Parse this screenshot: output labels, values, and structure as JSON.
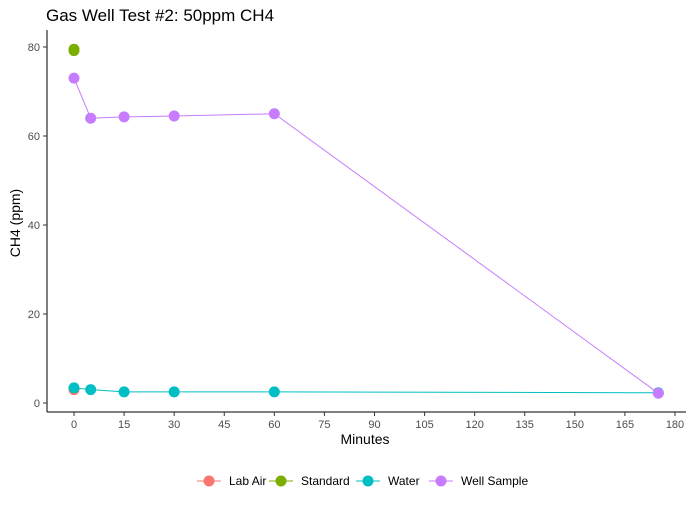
{
  "chart_data": {
    "type": "line",
    "title": "Gas Well Test #2: 50ppm CH4",
    "xlabel": "Minutes",
    "ylabel": "CH4 (ppm)",
    "xlim": [
      0,
      180
    ],
    "ylim": [
      0,
      80
    ],
    "xticks": [
      0,
      15,
      30,
      45,
      60,
      75,
      90,
      105,
      120,
      135,
      150,
      165,
      180
    ],
    "yticks": [
      0,
      20,
      40,
      60,
      80
    ],
    "grid": false,
    "legend_position": "bottom",
    "series": [
      {
        "name": "Lab Air",
        "color": "#F8766D",
        "points": [
          [
            0,
            3.0
          ]
        ]
      },
      {
        "name": "Standard",
        "color": "#7CAE00",
        "points": [
          [
            0,
            79.2
          ],
          [
            0,
            79.5
          ]
        ]
      },
      {
        "name": "Water",
        "color": "#00BFC4",
        "points": [
          [
            0,
            3.4
          ],
          [
            5,
            3.0
          ],
          [
            15,
            2.5
          ],
          [
            30,
            2.5
          ],
          [
            60,
            2.5
          ],
          [
            175,
            2.3
          ]
        ]
      },
      {
        "name": "Well Sample",
        "color": "#C77CFF",
        "points": [
          [
            0,
            73.0
          ],
          [
            5,
            64.0
          ],
          [
            15,
            64.3
          ],
          [
            30,
            64.5
          ],
          [
            60,
            65.0
          ],
          [
            175,
            2.2
          ]
        ]
      }
    ]
  }
}
